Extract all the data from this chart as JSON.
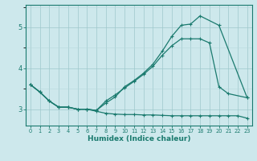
{
  "line1_x": [
    0,
    1,
    2,
    3,
    4,
    5,
    6,
    7,
    8,
    9,
    10,
    11,
    12,
    13,
    14,
    15,
    16,
    17,
    18,
    20,
    23
  ],
  "line1_y": [
    3.6,
    3.42,
    3.2,
    3.05,
    3.05,
    3.0,
    3.0,
    2.97,
    3.15,
    3.3,
    3.55,
    3.7,
    3.88,
    4.1,
    4.42,
    4.78,
    5.05,
    5.08,
    5.28,
    5.05,
    3.28
  ],
  "line2_x": [
    0,
    1,
    2,
    3,
    4,
    5,
    6,
    7,
    8,
    9,
    10,
    11,
    12,
    13,
    14,
    15,
    16,
    17,
    18,
    19,
    20,
    21,
    23
  ],
  "line2_y": [
    3.6,
    3.42,
    3.2,
    3.05,
    3.05,
    3.0,
    3.0,
    2.97,
    3.2,
    3.35,
    3.52,
    3.68,
    3.85,
    4.05,
    4.32,
    4.55,
    4.72,
    4.72,
    4.72,
    4.62,
    3.55,
    3.38,
    3.28
  ],
  "line3_x": [
    0,
    1,
    2,
    3,
    4,
    5,
    6,
    7,
    8,
    9,
    10,
    11,
    12,
    13,
    14,
    15,
    16,
    17,
    18,
    19,
    20,
    21,
    22,
    23
  ],
  "line3_y": [
    3.6,
    3.42,
    3.2,
    3.05,
    3.05,
    3.0,
    3.0,
    2.95,
    2.9,
    2.88,
    2.87,
    2.87,
    2.86,
    2.86,
    2.85,
    2.84,
    2.84,
    2.84,
    2.84,
    2.84,
    2.84,
    2.84,
    2.84,
    2.78
  ],
  "color": "#1a7a6e",
  "bg_color": "#cde8ec",
  "grid_color_minor": "#b8d8dc",
  "grid_color_major": "#9fc8cc",
  "xlabel": "Humidex (Indice chaleur)",
  "ylim": [
    2.6,
    5.55
  ],
  "xlim": [
    -0.5,
    23.5
  ],
  "yticks": [
    3,
    4,
    5
  ],
  "xticks": [
    0,
    1,
    2,
    3,
    4,
    5,
    6,
    7,
    8,
    9,
    10,
    11,
    12,
    13,
    14,
    15,
    16,
    17,
    18,
    19,
    20,
    21,
    22,
    23
  ],
  "marker": "+"
}
